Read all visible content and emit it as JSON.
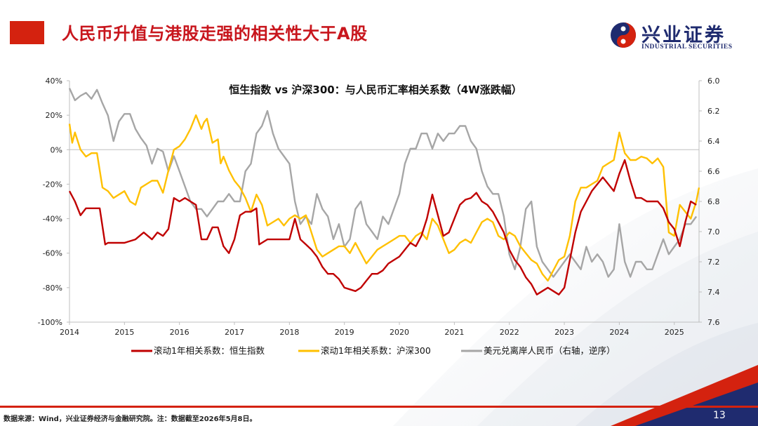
{
  "header": {
    "title": "人民币升值与港股走强的相关性大于A股",
    "logo_cn": "兴业证券",
    "logo_en": "INDUSTRIAL SECURITIES"
  },
  "footer": {
    "source": "数据来源：Wind，兴业证券经济与金融研究院。注：数据截至2026年5月8日。",
    "page_number": "13"
  },
  "colors": {
    "brand_red": "#d4220f",
    "brand_navy": "#1f2b6f",
    "hsi_series": "#c00000",
    "csi_series": "#ffc000",
    "usdcnh_series": "#a6a6a6"
  },
  "chart_data": {
    "type": "line",
    "title": "恒生指数 vs 沪深300：与人民币汇率相关系数（4W涨跌幅）",
    "x_ticks": [
      "2014",
      "2015",
      "2016",
      "2017",
      "2018",
      "2019",
      "2020",
      "2021",
      "2022",
      "2023",
      "2024",
      "2025"
    ],
    "xlim": [
      2014.0,
      2025.45
    ],
    "y_left": {
      "lim": [
        -100,
        40
      ],
      "ticks": [
        "40%",
        "20%",
        "0%",
        "-20%",
        "-40%",
        "-60%",
        "-80%",
        "-100%"
      ]
    },
    "y_right": {
      "lim": [
        6.0,
        7.6
      ],
      "inverted": true,
      "ticks": [
        "6.0",
        "6.2",
        "6.4",
        "6.6",
        "6.8",
        "7.0",
        "7.2",
        "7.4",
        "7.6"
      ]
    },
    "legend_position": "bottom",
    "series": [
      {
        "name": "滚动1年相关系数：恒生指数",
        "axis": "left",
        "x": [
          2014.0,
          2014.1,
          2014.2,
          2014.3,
          2014.4,
          2014.55,
          2014.65,
          2014.7,
          2014.8,
          2015.0,
          2015.2,
          2015.35,
          2015.5,
          2015.6,
          2015.7,
          2015.8,
          2015.9,
          2016.0,
          2016.1,
          2016.2,
          2016.3,
          2016.4,
          2016.5,
          2016.6,
          2016.7,
          2016.8,
          2016.9,
          2017.0,
          2017.1,
          2017.2,
          2017.3,
          2017.4,
          2017.45,
          2017.6,
          2017.8,
          2018.0,
          2018.1,
          2018.2,
          2018.3,
          2018.4,
          2018.5,
          2018.6,
          2018.7,
          2018.8,
          2018.9,
          2019.0,
          2019.1,
          2019.2,
          2019.3,
          2019.4,
          2019.5,
          2019.6,
          2019.7,
          2019.8,
          2019.9,
          2020.0,
          2020.1,
          2020.2,
          2020.3,
          2020.4,
          2020.5,
          2020.6,
          2020.7,
          2020.8,
          2020.9,
          2021.0,
          2021.1,
          2021.2,
          2021.3,
          2021.4,
          2021.5,
          2021.6,
          2021.7,
          2021.8,
          2021.9,
          2022.0,
          2022.1,
          2022.2,
          2022.3,
          2022.4,
          2022.5,
          2022.6,
          2022.7,
          2022.8,
          2022.9,
          2023.0,
          2023.1,
          2023.2,
          2023.3,
          2023.4,
          2023.5,
          2023.6,
          2023.7,
          2023.8,
          2023.9,
          2024.0,
          2024.1,
          2024.2,
          2024.3,
          2024.4,
          2024.5,
          2024.6,
          2024.7,
          2024.8,
          2024.9,
          2025.0,
          2025.1,
          2025.2,
          2025.3,
          2025.4
        ],
        "y": [
          -24,
          -30,
          -38,
          -34,
          -34,
          -34,
          -55,
          -54,
          -54,
          -54,
          -52,
          -48,
          -52,
          -48,
          -50,
          -46,
          -28,
          -30,
          -28,
          -30,
          -32,
          -52,
          -52,
          -45,
          -45,
          -56,
          -60,
          -52,
          -38,
          -36,
          -36,
          -34,
          -55,
          -52,
          -52,
          -52,
          -40,
          -52,
          -55,
          -58,
          -62,
          -68,
          -72,
          -72,
          -75,
          -80,
          -81,
          -82,
          -80,
          -76,
          -72,
          -72,
          -70,
          -66,
          -64,
          -62,
          -58,
          -54,
          -56,
          -50,
          -40,
          -26,
          -38,
          -50,
          -48,
          -40,
          -32,
          -29,
          -28,
          -25,
          -30,
          -32,
          -36,
          -42,
          -48,
          -58,
          -64,
          -68,
          -74,
          -78,
          -84,
          -82,
          -80,
          -82,
          -84,
          -80,
          -64,
          -48,
          -36,
          -30,
          -24,
          -20,
          -16,
          -20,
          -24,
          -14,
          -6,
          -18,
          -28,
          -28,
          -30,
          -30,
          -30,
          -34,
          -42,
          -46,
          -56,
          -42,
          -30,
          -32
        ]
      },
      {
        "name": "滚动1年相关系数：沪深300",
        "axis": "left",
        "x": [
          2014.0,
          2014.05,
          2014.1,
          2014.2,
          2014.3,
          2014.4,
          2014.5,
          2014.6,
          2014.7,
          2014.8,
          2014.9,
          2015.0,
          2015.1,
          2015.2,
          2015.3,
          2015.4,
          2015.5,
          2015.6,
          2015.7,
          2015.8,
          2015.9,
          2016.0,
          2016.1,
          2016.2,
          2016.3,
          2016.4,
          2016.45,
          2016.5,
          2016.6,
          2016.7,
          2016.75,
          2016.8,
          2016.9,
          2017.0,
          2017.1,
          2017.2,
          2017.3,
          2017.4,
          2017.5,
          2017.6,
          2017.7,
          2017.8,
          2017.9,
          2018.0,
          2018.1,
          2018.2,
          2018.3,
          2018.4,
          2018.5,
          2018.6,
          2018.7,
          2018.8,
          2018.9,
          2019.0,
          2019.1,
          2019.2,
          2019.3,
          2019.4,
          2019.5,
          2019.6,
          2019.7,
          2019.8,
          2019.9,
          2020.0,
          2020.1,
          2020.2,
          2020.3,
          2020.4,
          2020.5,
          2020.6,
          2020.7,
          2020.8,
          2020.9,
          2021.0,
          2021.1,
          2021.2,
          2021.3,
          2021.4,
          2021.5,
          2021.6,
          2021.7,
          2021.8,
          2021.9,
          2022.0,
          2022.1,
          2022.2,
          2022.3,
          2022.4,
          2022.5,
          2022.6,
          2022.7,
          2022.8,
          2022.9,
          2023.0,
          2023.1,
          2023.2,
          2023.3,
          2023.4,
          2023.5,
          2023.6,
          2023.7,
          2023.8,
          2023.9,
          2024.0,
          2024.1,
          2024.2,
          2024.3,
          2024.4,
          2024.5,
          2024.6,
          2024.7,
          2024.8,
          2024.9,
          2025.0,
          2025.1,
          2025.2,
          2025.3,
          2025.4,
          2025.45
        ],
        "y": [
          15,
          4,
          10,
          0,
          -4,
          -2,
          -2,
          -22,
          -24,
          -28,
          -26,
          -24,
          -30,
          -32,
          -22,
          -20,
          -18,
          -18,
          -25,
          -12,
          0,
          2,
          6,
          12,
          20,
          12,
          16,
          18,
          4,
          6,
          -8,
          -4,
          -12,
          -18,
          -22,
          -28,
          -36,
          -26,
          -32,
          -44,
          -42,
          -40,
          -44,
          -40,
          -38,
          -40,
          -38,
          -48,
          -58,
          -62,
          -60,
          -58,
          -56,
          -56,
          -60,
          -54,
          -60,
          -66,
          -62,
          -58,
          -56,
          -54,
          -52,
          -50,
          -50,
          -54,
          -50,
          -48,
          -52,
          -40,
          -44,
          -52,
          -60,
          -58,
          -54,
          -52,
          -54,
          -48,
          -42,
          -40,
          -42,
          -50,
          -52,
          -48,
          -50,
          -56,
          -60,
          -64,
          -66,
          -72,
          -76,
          -70,
          -64,
          -62,
          -50,
          -30,
          -22,
          -22,
          -20,
          -18,
          -10,
          -8,
          -6,
          10,
          -2,
          -6,
          -6,
          -4,
          -5,
          -8,
          -5,
          -10,
          -48,
          -50,
          -32,
          -36,
          -40,
          -30,
          -22
        ]
      },
      {
        "name": "美元兑离岸人民币（右轴，逆序）",
        "axis": "right",
        "x": [
          2014.0,
          2014.1,
          2014.2,
          2014.3,
          2014.4,
          2014.5,
          2014.6,
          2014.7,
          2014.8,
          2014.9,
          2015.0,
          2015.1,
          2015.2,
          2015.3,
          2015.4,
          2015.5,
          2015.6,
          2015.7,
          2015.8,
          2015.9,
          2016.0,
          2016.1,
          2016.2,
          2016.3,
          2016.4,
          2016.5,
          2016.6,
          2016.7,
          2016.8,
          2016.9,
          2017.0,
          2017.1,
          2017.2,
          2017.3,
          2017.4,
          2017.5,
          2017.6,
          2017.7,
          2017.8,
          2017.9,
          2018.0,
          2018.1,
          2018.2,
          2018.3,
          2018.4,
          2018.5,
          2018.6,
          2018.7,
          2018.8,
          2018.9,
          2019.0,
          2019.1,
          2019.2,
          2019.3,
          2019.4,
          2019.5,
          2019.6,
          2019.7,
          2019.8,
          2019.9,
          2020.0,
          2020.1,
          2020.2,
          2020.3,
          2020.4,
          2020.5,
          2020.6,
          2020.7,
          2020.8,
          2020.9,
          2021.0,
          2021.1,
          2021.2,
          2021.3,
          2021.4,
          2021.5,
          2021.6,
          2021.7,
          2021.8,
          2021.9,
          2022.0,
          2022.1,
          2022.2,
          2022.3,
          2022.4,
          2022.5,
          2022.6,
          2022.7,
          2022.8,
          2022.9,
          2023.0,
          2023.1,
          2023.2,
          2023.3,
          2023.4,
          2023.5,
          2023.6,
          2023.7,
          2023.8,
          2023.9,
          2024.0,
          2024.1,
          2024.2,
          2024.3,
          2024.4,
          2024.5,
          2024.6,
          2024.7,
          2024.8,
          2024.9,
          2025.0,
          2025.1,
          2025.2,
          2025.3,
          2025.4
        ],
        "y": [
          6.05,
          6.13,
          6.1,
          6.08,
          6.12,
          6.06,
          6.15,
          6.23,
          6.4,
          6.27,
          6.22,
          6.22,
          6.32,
          6.38,
          6.43,
          6.55,
          6.45,
          6.47,
          6.6,
          6.5,
          6.6,
          6.7,
          6.8,
          6.85,
          6.85,
          6.9,
          6.85,
          6.8,
          6.8,
          6.75,
          6.8,
          6.8,
          6.6,
          6.55,
          6.35,
          6.3,
          6.2,
          6.35,
          6.45,
          6.5,
          6.55,
          6.8,
          6.95,
          6.9,
          6.95,
          6.75,
          6.85,
          6.9,
          7.05,
          6.95,
          7.1,
          7.05,
          6.85,
          6.8,
          6.95,
          7.0,
          7.05,
          6.9,
          6.95,
          6.85,
          6.75,
          6.55,
          6.45,
          6.45,
          6.35,
          6.35,
          6.45,
          6.35,
          6.4,
          6.35,
          6.35,
          6.3,
          6.3,
          6.4,
          6.45,
          6.6,
          6.7,
          6.75,
          6.75,
          6.9,
          7.15,
          7.25,
          7.1,
          6.85,
          6.8,
          7.1,
          7.2,
          7.25,
          7.3,
          7.25,
          7.2,
          7.15,
          7.2,
          7.25,
          7.1,
          7.2,
          7.15,
          7.2,
          7.3,
          7.25,
          6.95,
          7.2,
          7.3,
          7.2,
          7.2,
          7.25,
          7.25,
          7.15,
          7.05,
          7.15,
          7.1,
          7.05,
          6.95,
          6.95,
          6.9
        ]
      }
    ]
  }
}
